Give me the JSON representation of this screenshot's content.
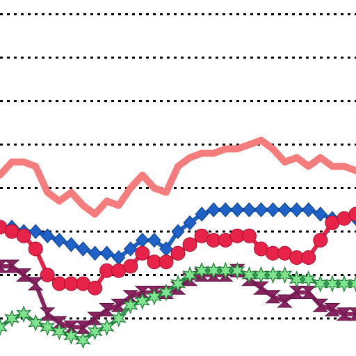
{
  "chart_data": {
    "type": "line",
    "title": "",
    "xlabel": "",
    "ylabel": "",
    "grid": true,
    "gridlines_y": [
      1,
      2,
      3,
      4,
      5,
      6,
      7,
      8
    ],
    "xlim": [
      0,
      30
    ],
    "ylim": [
      0,
      8.2
    ],
    "x": [
      0,
      1,
      2,
      3,
      4,
      5,
      6,
      7,
      8,
      9,
      10,
      11,
      12,
      13,
      14,
      15,
      16,
      17,
      18,
      19,
      20,
      21,
      22,
      23,
      24,
      25,
      26,
      27,
      28,
      29,
      30
    ],
    "series": [
      {
        "color": "#f47c7c",
        "marker": "none",
        "values": [
          4.3,
          4.6,
          4.6,
          4.5,
          3.9,
          3.7,
          3.9,
          3.6,
          3.4,
          3.7,
          3.6,
          4.0,
          4.3,
          4.0,
          3.9,
          4.5,
          4.7,
          4.8,
          4.8,
          4.9,
          4.9,
          5.0,
          5.1,
          4.9,
          4.6,
          4.7,
          4.5,
          4.7,
          4.5,
          4.5,
          4.4
        ]
      },
      {
        "color": "#1e62c8",
        "marker": "diamond",
        "values": [
          3.1,
          3.1,
          3.0,
          3.0,
          2.9,
          2.8,
          2.7,
          2.6,
          2.5,
          2.5,
          2.4,
          2.6,
          2.8,
          2.8,
          2.6,
          3.0,
          3.2,
          3.4,
          3.5,
          3.5,
          3.5,
          3.5,
          3.5,
          3.5,
          3.5,
          3.5,
          3.5,
          3.4,
          3.3,
          3.3,
          3.3
        ]
      },
      {
        "color": "#e8234a",
        "marker": "circle",
        "values": [
          3.1,
          3.0,
          2.9,
          2.6,
          2.0,
          1.8,
          1.8,
          1.8,
          1.7,
          2.1,
          2.1,
          2.2,
          2.5,
          2.3,
          2.3,
          2.5,
          2.7,
          2.9,
          2.8,
          2.8,
          2.9,
          2.9,
          2.6,
          2.5,
          2.5,
          2.4,
          2.4,
          2.8,
          3.2,
          3.3,
          3.4
        ]
      },
      {
        "color": "#8a2461",
        "marker": "hourglass",
        "values": [
          2.2,
          2.2,
          2.0,
          1.8,
          1.1,
          0.9,
          0.8,
          0.8,
          1.0,
          1.2,
          1.3,
          1.5,
          1.6,
          1.6,
          1.6,
          1.7,
          1.9,
          2.0,
          2.0,
          2.0,
          2.1,
          1.9,
          1.7,
          1.5,
          1.4,
          1.6,
          1.6,
          1.3,
          1.2,
          1.1,
          1.1
        ]
      },
      {
        "color": "#3a9a5c",
        "marker": "star",
        "values": [
          0.8,
          1.0,
          1.1,
          0.9,
          0.8,
          0.7,
          0.6,
          0.5,
          0.7,
          0.8,
          1.0,
          1.3,
          1.4,
          1.5,
          1.6,
          1.8,
          2.0,
          2.1,
          2.1,
          2.1,
          2.1,
          2.0,
          2.0,
          2.0,
          2.0,
          1.9,
          1.9,
          1.8,
          1.8,
          1.8,
          1.8
        ]
      }
    ]
  }
}
